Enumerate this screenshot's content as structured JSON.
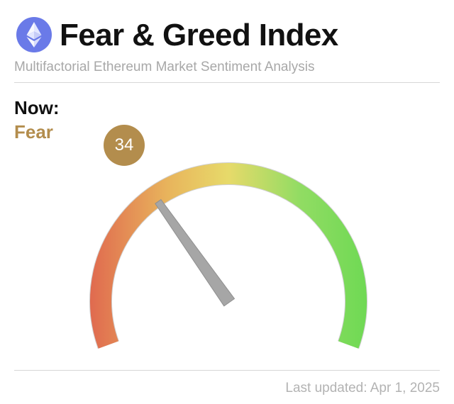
{
  "header": {
    "title": "Fear & Greed Index",
    "subtitle": "Multifactorial Ethereum Market Sentiment Analysis",
    "logo_icon": "ethereum-icon"
  },
  "current": {
    "now_label": "Now:",
    "state": "Fear",
    "value": "34",
    "value_number": 34,
    "scale_min": 0,
    "scale_max": 100,
    "state_color": "#b38d4d"
  },
  "gauge": {
    "colors": [
      "#e06a4f",
      "#e8b45c",
      "#e7da6a",
      "#91dc63",
      "#6fd954"
    ],
    "needle_color": "#a6a6a6"
  },
  "footer": {
    "updated": "Last updated: Apr 1, 2025"
  }
}
